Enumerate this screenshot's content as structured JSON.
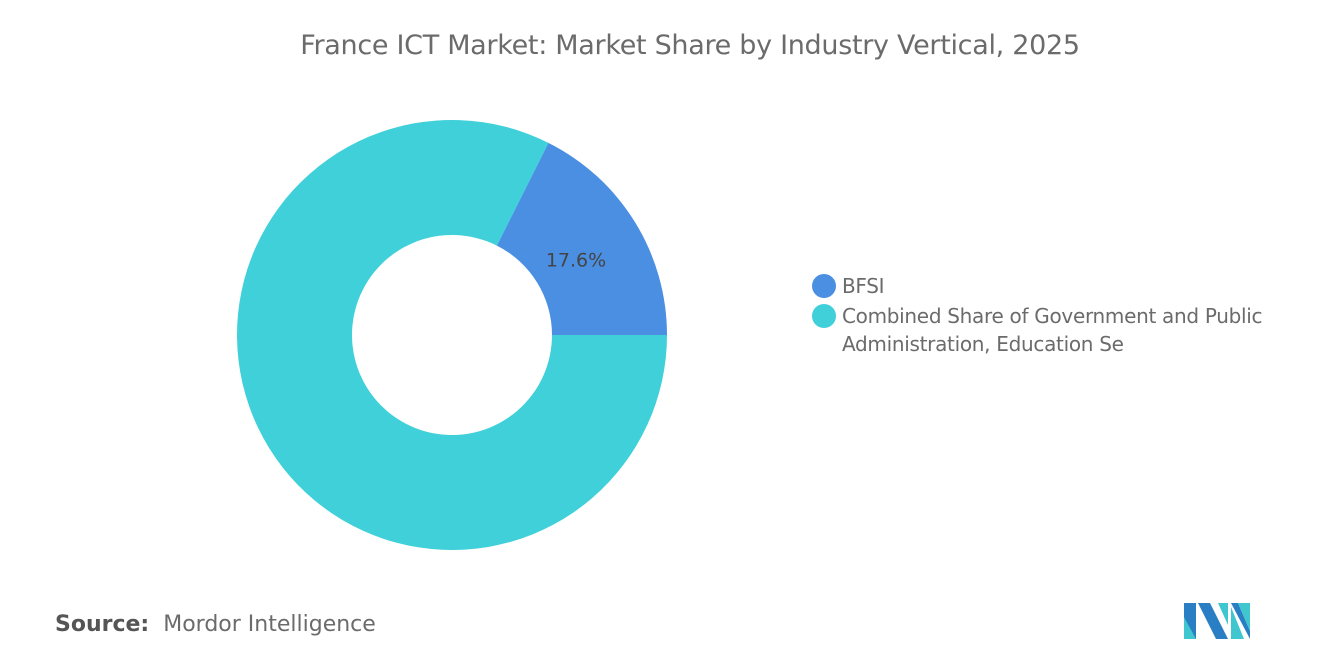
{
  "chart_data": {
    "type": "pie",
    "donut": true,
    "title": "France ICT Market: Market Share by Industry Vertical, 2025",
    "slices": [
      {
        "label": "BFSI",
        "value": 17.6,
        "data_label": "17.6%",
        "color": "#4b8fe3"
      },
      {
        "label": "Combined Share of Government and Public Administration, Education Se",
        "value": 82.4,
        "data_label": "",
        "color": "#3fd0da"
      }
    ],
    "legend_position": "right"
  },
  "source": {
    "label": "Source:",
    "value": "Mordor Intelligence"
  },
  "logo": {
    "text": "Mordor Intelligence logo",
    "colors": [
      "#2a7fc4",
      "#3fc6cf"
    ]
  }
}
